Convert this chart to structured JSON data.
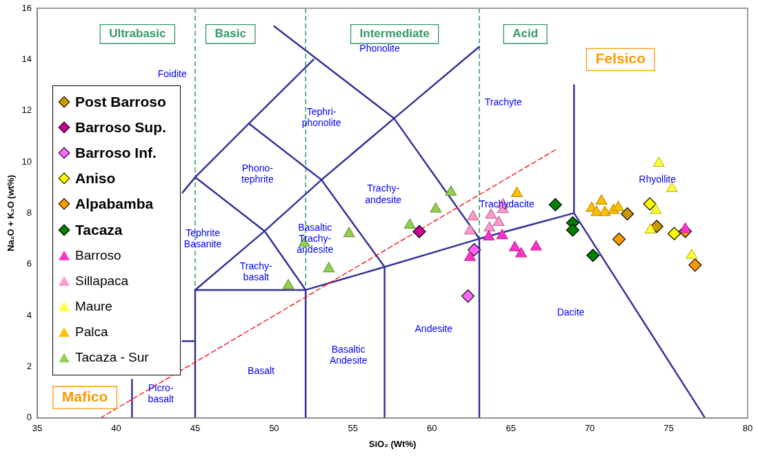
{
  "chart_data": {
    "type": "scatter",
    "xlabel": "SiO₂ (Wt%)",
    "ylabel": "Na₂O + K₂O (wt%)",
    "xlim": [
      35,
      80
    ],
    "ylim": [
      0,
      16
    ],
    "xticks": [
      35,
      40,
      45,
      50,
      55,
      60,
      65,
      70,
      75,
      80
    ],
    "yticks": [
      0,
      2,
      4,
      6,
      8,
      10,
      12,
      14,
      16
    ],
    "grid": false,
    "legend": "left",
    "series": [
      {
        "name": "Post Barroso",
        "color": "#cc9900",
        "marker": "diamond",
        "x": [
          72.38,
          74.24
        ],
        "values": [
          7.97,
          7.48
        ]
      },
      {
        "name": "Barroso Sup.",
        "color": "#cc0099",
        "marker": "diamond",
        "x": [
          59.2
        ],
        "values": [
          7.28
        ]
      },
      {
        "name": "Barroso Inf.",
        "color": "#ff66ff",
        "marker": "diamond",
        "x": [
          62.68,
          62.28
        ],
        "values": [
          6.57,
          4.76
        ]
      },
      {
        "name": "Aniso",
        "color": "#ffff00",
        "marker": "diamond",
        "x": [
          73.8,
          75.35
        ],
        "values": [
          8.36,
          7.2
        ]
      },
      {
        "name": "Alpabamba",
        "color": "#ff9900",
        "marker": "diamond",
        "x": [
          71.85,
          76.67,
          76.05
        ],
        "values": [
          6.98,
          5.97,
          7.29
        ]
      },
      {
        "name": "Tacaza",
        "color": "#008000",
        "marker": "diamond",
        "x": [
          67.82,
          68.92,
          68.92,
          70.2
        ],
        "values": [
          8.33,
          7.62,
          7.34,
          6.35
        ]
      },
      {
        "name": "Barroso",
        "color": "#ff33cc",
        "marker": "triangle",
        "x": [
          62.41,
          63.6,
          64.45,
          65.25,
          65.65,
          66.6,
          76.05
        ],
        "values": [
          6.27,
          7.07,
          7.12,
          6.65,
          6.41,
          6.68,
          7.37
        ]
      },
      {
        "name": "Sillapaca",
        "color": "#ff99cc",
        "marker": "triangle",
        "x": [
          62.6,
          62.41,
          63.74,
          63.65,
          64.23,
          64.5,
          64.5
        ],
        "values": [
          7.86,
          7.31,
          7.92,
          7.42,
          7.64,
          8.14,
          8.33
        ]
      },
      {
        "name": "Maure",
        "color": "#ffff33",
        "marker": "triangle",
        "x": [
          74.37,
          75.2,
          74.19,
          73.84,
          76.45
        ],
        "values": [
          9.95,
          8.96,
          8.11,
          7.34,
          6.35
        ]
      },
      {
        "name": "Palca",
        "color": "#ffc000",
        "marker": "triangle",
        "x": [
          65.38,
          70.12,
          70.74,
          70.43,
          70.96,
          71.5,
          71.8
        ],
        "values": [
          8.77,
          8.19,
          8.47,
          8.03,
          8.03,
          8.11,
          8.22
        ]
      },
      {
        "name": "Tacaza - Sur",
        "color": "#92d050",
        "marker": "triangle",
        "x": [
          51.92,
          54.75,
          53.47,
          50.9,
          58.6,
          60.24,
          61.2
        ],
        "values": [
          6.82,
          7.2,
          5.83,
          5.17,
          7.53,
          8.16,
          8.82
        ]
      },
      {
        "type": "line",
        "color": "#ff0000",
        "line_style": "dashed",
        "x": [
          39,
          67.9
        ],
        "values": [
          0,
          10.5
        ]
      },
      {
        "type": "line",
        "color": "#333399",
        "x": [
          41,
          41
        ],
        "values": [
          0,
          1.5
        ]
      },
      {
        "type": "line",
        "color": "#333399",
        "x": [
          44.2,
          45
        ],
        "values": [
          3,
          3
        ]
      },
      {
        "type": "line",
        "color": "#333399",
        "x": [
          45,
          45,
          52,
          57,
          63,
          69,
          77.3
        ],
        "values": [
          0,
          5,
          5,
          5.9,
          7,
          8,
          0
        ]
      },
      {
        "type": "line",
        "color": "#333399",
        "x": [
          52,
          52
        ],
        "values": [
          0,
          5
        ]
      },
      {
        "type": "line",
        "color": "#333399",
        "x": [
          57,
          57
        ],
        "values": [
          0,
          5.9
        ]
      },
      {
        "type": "line",
        "color": "#333399",
        "x": [
          63,
          63
        ],
        "values": [
          0,
          7
        ]
      },
      {
        "type": "line",
        "color": "#333399",
        "x": [
          69,
          69
        ],
        "values": [
          8,
          13
        ]
      },
      {
        "type": "line",
        "color": "#333399",
        "x": [
          44.2,
          45,
          48.4,
          52.5
        ],
        "values": [
          8.8,
          9.4,
          11.5,
          14
        ]
      },
      {
        "type": "line",
        "color": "#333399",
        "x": [
          45,
          49.4,
          53,
          57.6,
          63
        ],
        "values": [
          5,
          7.3,
          9.3,
          11.7,
          14.5
        ]
      },
      {
        "type": "line",
        "color": "#333399",
        "x": [
          45,
          49.4,
          52
        ],
        "values": [
          9.4,
          7.3,
          5
        ]
      },
      {
        "type": "line",
        "color": "#333399",
        "x": [
          48.4,
          53,
          57
        ],
        "values": [
          11.5,
          9.3,
          5.9
        ]
      },
      {
        "type": "line",
        "color": "#333399",
        "x": [
          50,
          57.6,
          63
        ],
        "values": [
          15.3,
          11.7,
          7
        ]
      }
    ],
    "ref_lines": [
      {
        "axis": "x",
        "value": 45,
        "color": "#339966",
        "line_style": "dashed"
      },
      {
        "axis": "x",
        "value": 52,
        "color": "#339966",
        "line_style": "dashed"
      },
      {
        "axis": "x",
        "value": 63,
        "color": "#339966",
        "line_style": "dashed"
      }
    ],
    "annotations": [
      "Ultrabasic",
      "Basic",
      "Intermediate",
      "Acid",
      "Felsico",
      "Mafico",
      "Foidite",
      "Phonolite",
      "Trachyte",
      "Tephri-\nphonolite",
      "Phono-\ntephrite",
      "Trachy-\nandesite",
      "Trachydacite",
      "Rhyollite",
      "Tephrite\nBasanite",
      "Basaltic\nTrachy-\nandesite",
      "Trachy-\nbasalt",
      "Andesite",
      "Dacite",
      "Basaltic\nAndesite",
      "Basalt",
      "Picro-\nbasalt"
    ]
  }
}
